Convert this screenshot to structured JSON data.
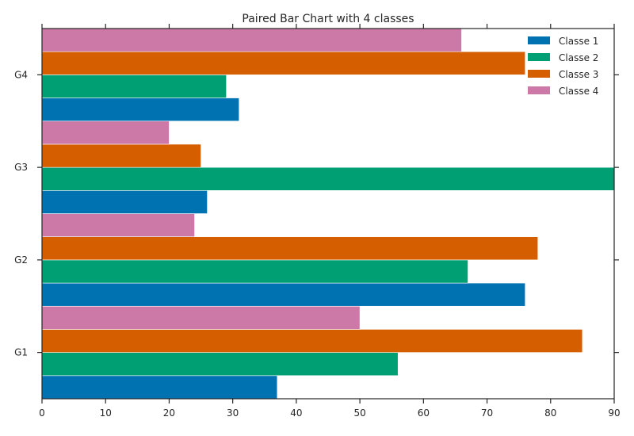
{
  "chart_data": {
    "type": "bar",
    "orientation": "horizontal",
    "title": "Paired Bar Chart with 4 classes",
    "xlabel": "",
    "ylabel": "",
    "categories": [
      "G1",
      "G2",
      "G3",
      "G4"
    ],
    "series": [
      {
        "name": "Classe 1",
        "color": "#0072b2",
        "values": [
          37,
          76,
          26,
          31
        ]
      },
      {
        "name": "Classe 2",
        "color": "#009e73",
        "values": [
          56,
          67,
          90,
          29
        ]
      },
      {
        "name": "Classe 3",
        "color": "#d55e00",
        "values": [
          85,
          78,
          25,
          76
        ]
      },
      {
        "name": "Classe 4",
        "color": "#cc79a7",
        "values": [
          50,
          24,
          20,
          66
        ]
      }
    ],
    "xlim": [
      0,
      90
    ],
    "xticks": [
      0,
      10,
      20,
      30,
      40,
      50,
      60,
      70,
      80,
      90
    ],
    "grid": false,
    "legend_position": "top-right"
  }
}
